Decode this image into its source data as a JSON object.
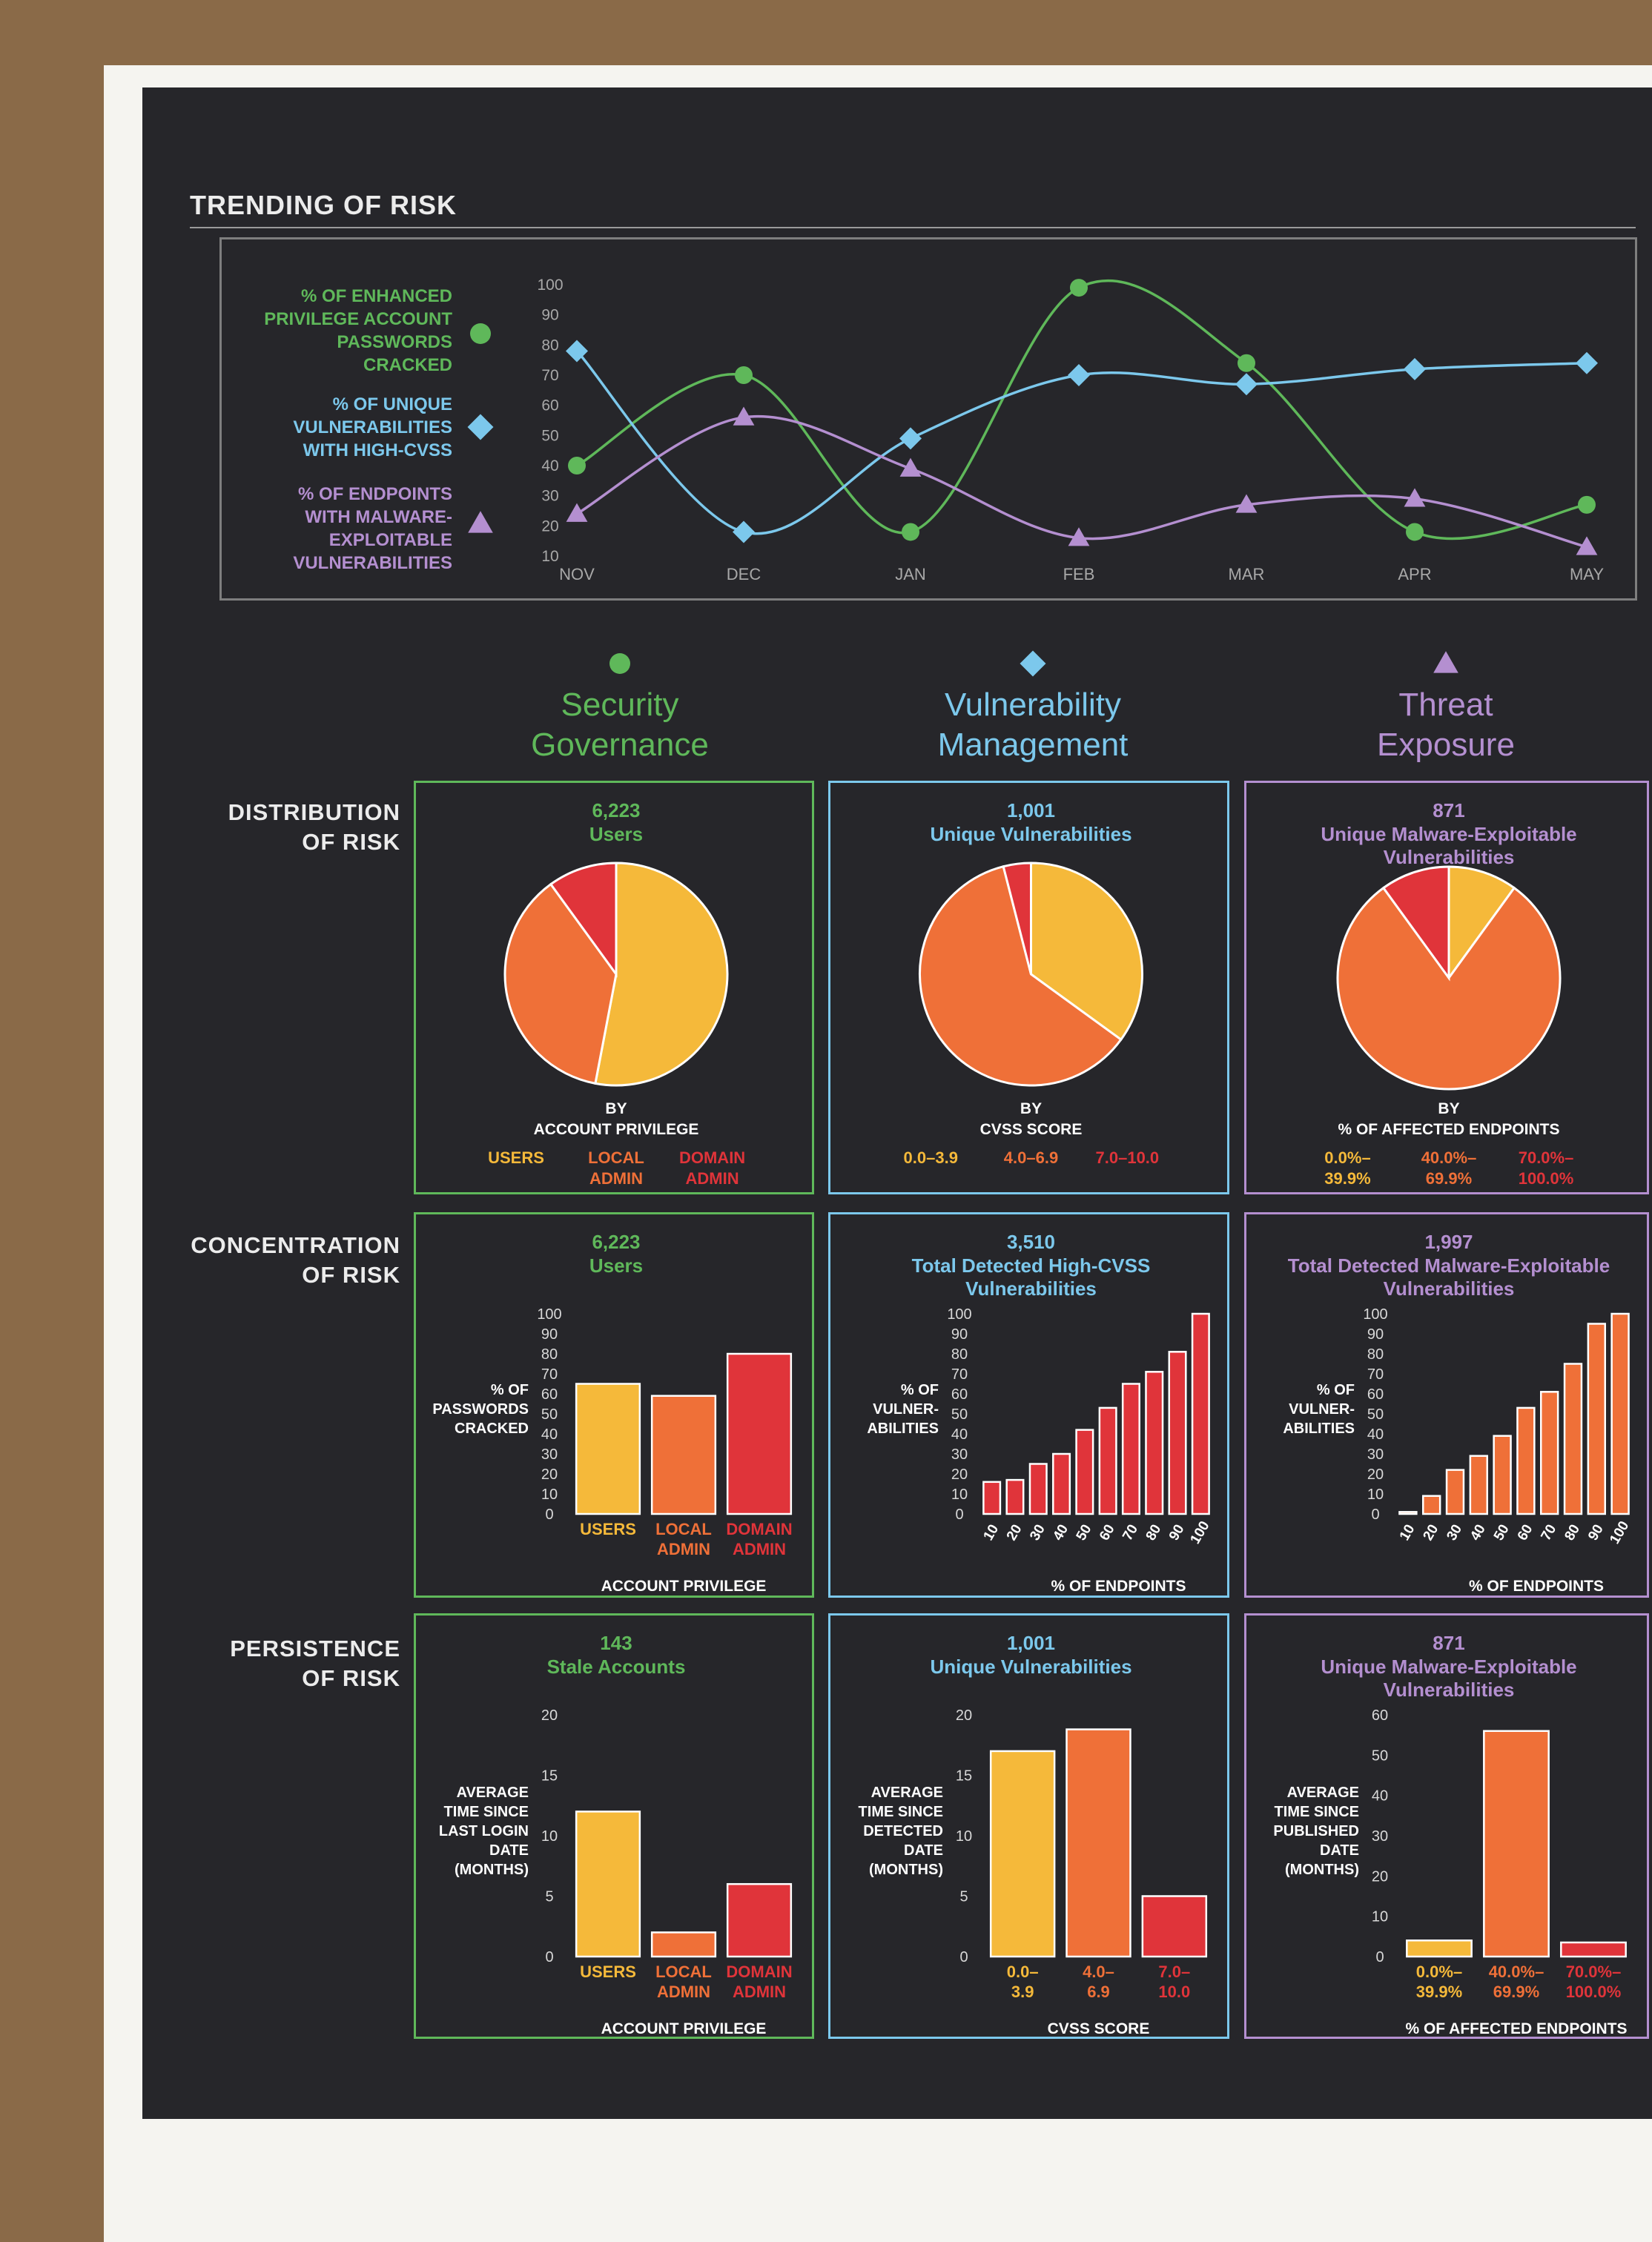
{
  "colors": {
    "green": "#5fb85a",
    "blue": "#7cc8ec",
    "purple": "#b48fd0",
    "yellow": "#f5b93a",
    "orange": "#ef7038",
    "red": "#e0343a",
    "board": "#26262a"
  },
  "section_title": "TRENDING OF RISK",
  "trend": {
    "legend": [
      {
        "label": "% OF ENHANCED PRIVILEGE ACCOUNT PASSWORDS CRACKED",
        "lines": [
          "% OF ENHANCED",
          "PRIVILEGE ACCOUNT",
          "PASSWORDS",
          "CRACKED"
        ],
        "marker": "circle"
      },
      {
        "label": "% OF UNIQUE VULNERABILITIES WITH HIGH-CVSS",
        "lines": [
          "% OF UNIQUE",
          "VULNERABILITIES",
          "WITH HIGH-CVSS"
        ],
        "marker": "diamond"
      },
      {
        "label": "% OF ENDPOINTS WITH MALWARE-EXPLOITABLE VULNERABILITIES",
        "lines": [
          "% OF ENDPOINTS",
          "WITH MALWARE-",
          "EXPLOITABLE",
          "VULNERABILITIES"
        ],
        "marker": "triangle"
      }
    ]
  },
  "columns": [
    {
      "marker": "circle",
      "title_lines": [
        "Security",
        "Governance"
      ]
    },
    {
      "marker": "diamond",
      "title_lines": [
        "Vulnerability",
        "Management"
      ]
    },
    {
      "marker": "triangle",
      "title_lines": [
        "Threat",
        "Exposure"
      ]
    }
  ],
  "rows": [
    {
      "lines": [
        "DISTRIBUTION",
        "OF RISK"
      ]
    },
    {
      "lines": [
        "CONCENTRATION",
        "OF RISK"
      ]
    },
    {
      "lines": [
        "PERSISTENCE",
        "OF RISK"
      ]
    }
  ],
  "panels": {
    "dist_gov": {
      "count": "6,223",
      "title_lines": [
        "Users"
      ],
      "by_lines": [
        "BY",
        "ACCOUNT PRIVILEGE"
      ],
      "legend": [
        [
          "USERS"
        ],
        [
          "LOCAL",
          "ADMIN"
        ],
        [
          "DOMAIN",
          "ADMIN"
        ]
      ]
    },
    "dist_vuln": {
      "count": "1,001",
      "title_lines": [
        "Unique Vulnerabilities"
      ],
      "by_lines": [
        "BY",
        "CVSS SCORE"
      ],
      "legend": [
        [
          "0.0–3.9"
        ],
        [
          "4.0–6.9"
        ],
        [
          "7.0–10.0"
        ]
      ]
    },
    "dist_threat": {
      "count": "871",
      "title_lines": [
        "Unique Malware-Exploitable",
        "Vulnerabilities"
      ],
      "by_lines": [
        "BY",
        "% OF AFFECTED ENDPOINTS"
      ],
      "legend": [
        [
          "0.0%–",
          "39.9%"
        ],
        [
          "40.0%–",
          "69.9%"
        ],
        [
          "70.0%–",
          "100.0%"
        ]
      ]
    },
    "conc_gov": {
      "count": "6,223",
      "title_lines": [
        "Users"
      ],
      "ylabel_lines": [
        "% OF",
        "PASSWORDS",
        "CRACKED"
      ],
      "xlabel": "ACCOUNT PRIVILEGE",
      "cat_lines": [
        [
          "USERS"
        ],
        [
          "LOCAL",
          "ADMIN"
        ],
        [
          "DOMAIN",
          "ADMIN"
        ]
      ]
    },
    "conc_vuln": {
      "count": "3,510",
      "title_lines": [
        "Total Detected High-CVSS",
        "Vulnerabilities"
      ],
      "ylabel_lines": [
        "% OF",
        "VULNER-",
        "ABILITIES"
      ],
      "xlabel": "% OF ENDPOINTS"
    },
    "conc_threat": {
      "count": "1,997",
      "title_lines": [
        "Total Detected Malware-Exploitable",
        "Vulnerabilities"
      ],
      "ylabel_lines": [
        "% OF",
        "VULNER-",
        "ABILITIES"
      ],
      "xlabel": "% OF ENDPOINTS"
    },
    "pers_gov": {
      "count": "143",
      "title_lines": [
        "Stale Accounts"
      ],
      "ylabel_lines": [
        "AVERAGE",
        "TIME SINCE",
        "LAST LOGIN",
        "DATE",
        "(MONTHS)"
      ],
      "xlabel": "ACCOUNT PRIVILEGE",
      "cat_lines": [
        [
          "USERS"
        ],
        [
          "LOCAL",
          "ADMIN"
        ],
        [
          "DOMAIN",
          "ADMIN"
        ]
      ]
    },
    "pers_vuln": {
      "count": "1,001",
      "title_lines": [
        "Unique Vulnerabilities"
      ],
      "ylabel_lines": [
        "AVERAGE",
        "TIME SINCE",
        "DETECTED",
        "DATE",
        "(MONTHS)"
      ],
      "xlabel": "CVSS SCORE",
      "cat_lines": [
        [
          "0.0–",
          "3.9"
        ],
        [
          "4.0–",
          "6.9"
        ],
        [
          "7.0–",
          "10.0"
        ]
      ]
    },
    "pers_threat": {
      "count": "871",
      "title_lines": [
        "Unique Malware-Exploitable",
        "Vulnerabilities"
      ],
      "ylabel_lines": [
        "AVERAGE",
        "TIME SINCE",
        "PUBLISHED",
        "DATE",
        "(MONTHS)"
      ],
      "xlabel": "% OF AFFECTED ENDPOINTS",
      "cat_lines": [
        [
          "0.0%–",
          "39.9%"
        ],
        [
          "40.0%–",
          "69.9%"
        ],
        [
          "70.0%–",
          "100.0%"
        ]
      ]
    }
  },
  "chart_data": [
    {
      "id": "trend",
      "type": "line",
      "title": "TRENDING OF RISK",
      "x": [
        "NOV",
        "DEC",
        "JAN",
        "FEB",
        "MAR",
        "APR",
        "MAY"
      ],
      "ylim": [
        10,
        100
      ],
      "yticks": [
        10,
        20,
        30,
        40,
        50,
        60,
        70,
        80,
        90,
        100
      ],
      "series": [
        {
          "name": "% OF ENHANCED PRIVILEGE ACCOUNT PASSWORDS CRACKED",
          "color": "#5fb85a",
          "marker": "circle",
          "values": [
            40,
            70,
            18,
            99,
            74,
            18,
            27
          ]
        },
        {
          "name": "% OF UNIQUE VULNERABILITIES WITH HIGH-CVSS",
          "color": "#7cc8ec",
          "marker": "diamond",
          "values": [
            78,
            18,
            49,
            70,
            67,
            72,
            74
          ]
        },
        {
          "name": "% OF ENDPOINTS WITH MALWARE-EXPLOITABLE VULNERABILITIES",
          "color": "#b48fd0",
          "marker": "triangle",
          "values": [
            24,
            56,
            39,
            16,
            27,
            29,
            13
          ]
        }
      ]
    },
    {
      "id": "dist_gov",
      "type": "pie",
      "categories": [
        "USERS",
        "LOCAL ADMIN",
        "DOMAIN ADMIN"
      ],
      "values": [
        53,
        37,
        10
      ],
      "colors": [
        "#f5b93a",
        "#ef7038",
        "#e0343a"
      ]
    },
    {
      "id": "dist_vuln",
      "type": "pie",
      "categories": [
        "0.0–3.9",
        "4.0–6.9",
        "7.0–10.0"
      ],
      "values": [
        35,
        61,
        4
      ],
      "colors": [
        "#f5b93a",
        "#ef7038",
        "#e0343a"
      ]
    },
    {
      "id": "dist_threat",
      "type": "pie",
      "categories": [
        "0.0%–39.9%",
        "40.0%–69.9%",
        "70.0%–100.0%"
      ],
      "values": [
        10,
        80,
        10
      ],
      "colors": [
        "#f5b93a",
        "#ef7038",
        "#e0343a"
      ]
    },
    {
      "id": "conc_gov",
      "type": "bar",
      "categories": [
        "USERS",
        "LOCAL ADMIN",
        "DOMAIN ADMIN"
      ],
      "values": [
        65,
        59,
        80
      ],
      "colors": [
        "#f5b93a",
        "#ef7038",
        "#e0343a"
      ],
      "ylim": [
        0,
        100
      ],
      "yticks": [
        0,
        10,
        20,
        30,
        40,
        50,
        60,
        70,
        80,
        90,
        100
      ],
      "ylabel": "% OF PASSWORDS CRACKED",
      "xlabel": "ACCOUNT PRIVILEGE"
    },
    {
      "id": "conc_vuln",
      "type": "bar",
      "categories": [
        "10",
        "20",
        "30",
        "40",
        "50",
        "60",
        "70",
        "80",
        "90",
        "100"
      ],
      "values": [
        16,
        17,
        25,
        30,
        42,
        53,
        65,
        71,
        81,
        100
      ],
      "colors": [
        "#e0343a"
      ],
      "ylim": [
        0,
        100
      ],
      "yticks": [
        0,
        10,
        20,
        30,
        40,
        50,
        60,
        70,
        80,
        90,
        100
      ],
      "ylabel": "% OF VULNER- ABILITIES",
      "xlabel": "% OF ENDPOINTS"
    },
    {
      "id": "conc_threat",
      "type": "bar",
      "categories": [
        "10",
        "20",
        "30",
        "40",
        "50",
        "60",
        "70",
        "80",
        "90",
        "100"
      ],
      "values": [
        1,
        9,
        22,
        29,
        39,
        53,
        61,
        75,
        95,
        100
      ],
      "colors": [
        "#ef7038"
      ],
      "ylim": [
        0,
        100
      ],
      "yticks": [
        0,
        10,
        20,
        30,
        40,
        50,
        60,
        70,
        80,
        90,
        100
      ],
      "ylabel": "% OF VULNER- ABILITIES",
      "xlabel": "% OF ENDPOINTS"
    },
    {
      "id": "pers_gov",
      "type": "bar",
      "categories": [
        "USERS",
        "LOCAL ADMIN",
        "DOMAIN ADMIN"
      ],
      "values": [
        12,
        2,
        6
      ],
      "colors": [
        "#f5b93a",
        "#ef7038",
        "#e0343a"
      ],
      "ylim": [
        0,
        20
      ],
      "yticks": [
        0,
        5,
        10,
        15,
        20
      ],
      "ylabel": "AVERAGE TIME SINCE LAST LOGIN DATE (MONTHS)",
      "xlabel": "ACCOUNT PRIVILEGE"
    },
    {
      "id": "pers_vuln",
      "type": "bar",
      "categories": [
        "0.0–3.9",
        "4.0–6.9",
        "7.0–10.0"
      ],
      "values": [
        17,
        18.8,
        5
      ],
      "colors": [
        "#f5b93a",
        "#ef7038",
        "#e0343a"
      ],
      "ylim": [
        0,
        20
      ],
      "yticks": [
        0,
        5,
        10,
        15,
        20
      ],
      "ylabel": "AVERAGE TIME SINCE DETECTED DATE (MONTHS)",
      "xlabel": "CVSS SCORE"
    },
    {
      "id": "pers_threat",
      "type": "bar",
      "categories": [
        "0.0%–39.9%",
        "40.0%–69.9%",
        "70.0%–100.0%"
      ],
      "values": [
        4,
        56,
        3.5
      ],
      "colors": [
        "#f5b93a",
        "#ef7038",
        "#e0343a"
      ],
      "ylim": [
        0,
        60
      ],
      "yticks": [
        0,
        10,
        20,
        30,
        40,
        50,
        60
      ],
      "ylabel": "AVERAGE TIME SINCE PUBLISHED DATE (MONTHS)",
      "xlabel": "% OF AFFECTED ENDPOINTS"
    }
  ]
}
